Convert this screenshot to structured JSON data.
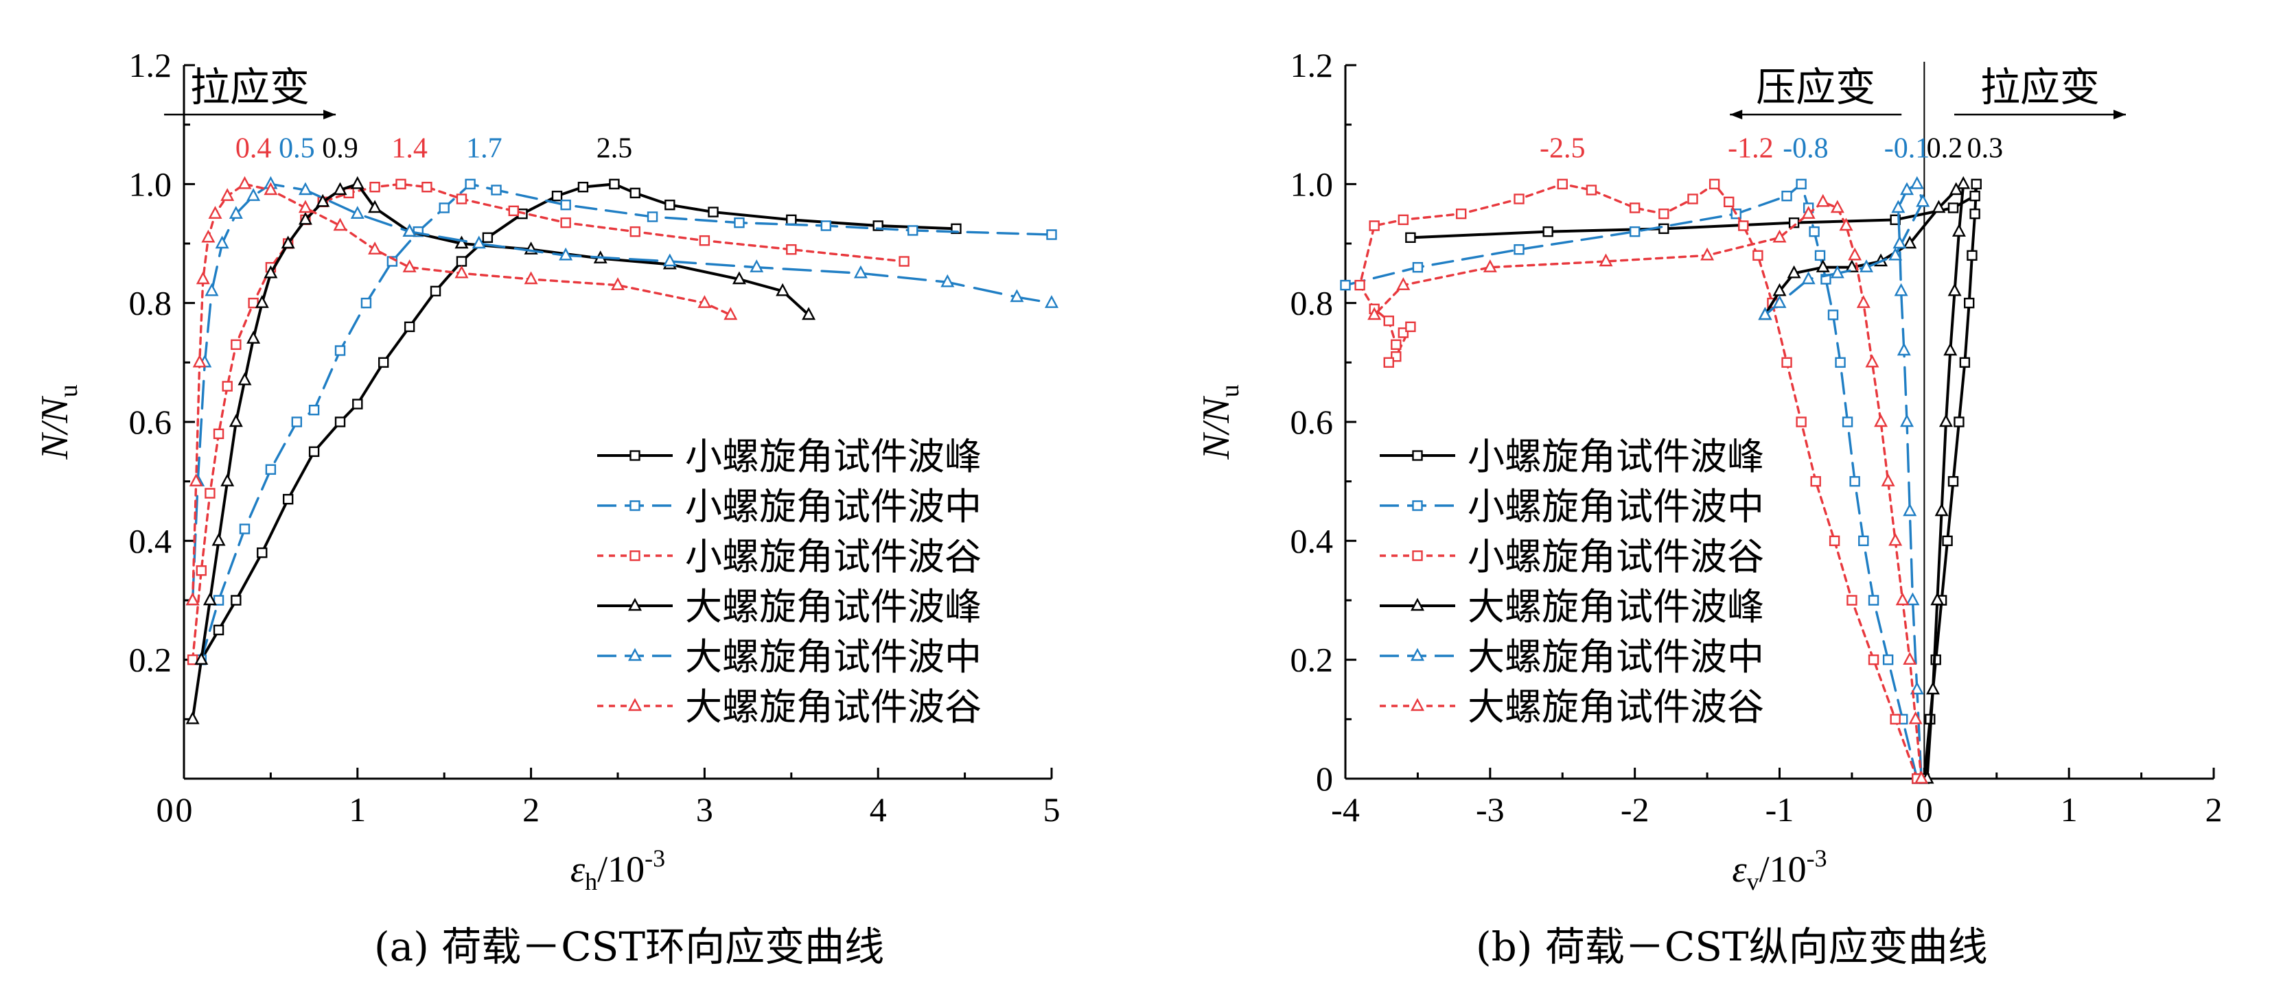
{
  "legend_entries": [
    "小螺旋角试件波峰",
    "小螺旋角试件波中",
    "小螺旋角试件波谷",
    "大螺旋角试件波峰",
    "大螺旋角试件波中",
    "大螺旋角试件波谷"
  ],
  "colors": {
    "black": "#000000",
    "blue": "#1f7ec4",
    "red": "#e8383d"
  },
  "chart_data": [
    {
      "type": "line",
      "caption": "(a) 荷载－CST环向应变曲线",
      "xlabel": "εh/10-3",
      "ylabel": "N/Nu",
      "xlim": [
        0,
        5
      ],
      "ylim": [
        0,
        1.2
      ],
      "xticks": [
        0,
        1,
        2,
        3,
        4,
        5
      ],
      "yticks": [
        0.2,
        0.4,
        0.6,
        0.8,
        1.0,
        1.2
      ],
      "xtick_labels": [
        "0",
        "1",
        "2",
        "3",
        "4",
        "5"
      ],
      "ytick_labels": [
        "0.2",
        "0.4",
        "0.6",
        "0.8",
        "1.0",
        "1.2"
      ],
      "legend_position": "lower-right",
      "annotations": [
        {
          "text": "拉应变",
          "kind": "arrow-right",
          "x": 0.38,
          "y": 1.14
        },
        {
          "text": "0.4",
          "x": 0.4,
          "y": 1.045,
          "color": "red"
        },
        {
          "text": "0.5",
          "x": 0.65,
          "y": 1.045,
          "color": "blue"
        },
        {
          "text": "0.9",
          "x": 0.9,
          "y": 1.045,
          "color": "black"
        },
        {
          "text": "1.4",
          "x": 1.3,
          "y": 1.045,
          "color": "red"
        },
        {
          "text": "1.7",
          "x": 1.73,
          "y": 1.045,
          "color": "blue"
        },
        {
          "text": "2.5",
          "x": 2.48,
          "y": 1.045,
          "color": "black"
        }
      ],
      "series": [
        {
          "name": "小螺旋角试件波峰",
          "color": "black",
          "dash": "solid",
          "marker": "square",
          "x": [
            0.1,
            0.2,
            0.3,
            0.45,
            0.6,
            0.75,
            0.9,
            1.0,
            1.15,
            1.3,
            1.45,
            1.6,
            1.75,
            1.95,
            2.15,
            2.3,
            2.48,
            2.6,
            2.8,
            3.05,
            3.5,
            4.0,
            4.45
          ],
          "y": [
            0.2,
            0.25,
            0.3,
            0.38,
            0.47,
            0.55,
            0.6,
            0.63,
            0.7,
            0.76,
            0.82,
            0.87,
            0.91,
            0.95,
            0.98,
            0.995,
            1.0,
            0.985,
            0.965,
            0.953,
            0.94,
            0.93,
            0.925
          ]
        },
        {
          "name": "小螺旋角试件波中",
          "color": "blue",
          "dash": "dash",
          "marker": "square",
          "x": [
            0.1,
            0.2,
            0.35,
            0.5,
            0.65,
            0.75,
            0.9,
            1.05,
            1.2,
            1.35,
            1.5,
            1.65,
            1.8,
            2.2,
            2.7,
            3.2,
            3.7,
            4.2,
            5.0
          ],
          "y": [
            0.2,
            0.3,
            0.42,
            0.52,
            0.6,
            0.62,
            0.72,
            0.8,
            0.87,
            0.92,
            0.96,
            1.0,
            0.99,
            0.965,
            0.945,
            0.935,
            0.93,
            0.922,
            0.915
          ]
        },
        {
          "name": "小螺旋角试件波谷",
          "color": "red",
          "dash": "dot",
          "marker": "square",
          "x": [
            0.05,
            0.1,
            0.15,
            0.2,
            0.25,
            0.3,
            0.4,
            0.5,
            0.6,
            0.7,
            0.8,
            0.95,
            1.1,
            1.25,
            1.4,
            1.6,
            1.9,
            2.2,
            2.6,
            3.0,
            3.5,
            4.15
          ],
          "y": [
            0.2,
            0.35,
            0.48,
            0.58,
            0.66,
            0.73,
            0.8,
            0.86,
            0.9,
            0.94,
            0.97,
            0.985,
            0.995,
            1.0,
            0.995,
            0.975,
            0.955,
            0.935,
            0.92,
            0.905,
            0.89,
            0.87
          ]
        },
        {
          "name": "大螺旋角试件波峰",
          "color": "black",
          "dash": "solid",
          "marker": "triangle",
          "x": [
            0.05,
            0.1,
            0.15,
            0.2,
            0.25,
            0.3,
            0.35,
            0.4,
            0.45,
            0.5,
            0.6,
            0.7,
            0.8,
            0.9,
            1.0,
            1.1,
            1.3,
            1.6,
            2.0,
            2.4,
            2.8,
            3.2,
            3.45,
            3.6
          ],
          "y": [
            0.1,
            0.2,
            0.3,
            0.4,
            0.5,
            0.6,
            0.67,
            0.74,
            0.8,
            0.85,
            0.9,
            0.94,
            0.97,
            0.99,
            1.0,
            0.96,
            0.92,
            0.9,
            0.89,
            0.875,
            0.865,
            0.84,
            0.82,
            0.78
          ]
        },
        {
          "name": "大螺旋角试件波中",
          "color": "blue",
          "dash": "longdash",
          "marker": "triangle",
          "x": [
            0.05,
            0.08,
            0.12,
            0.16,
            0.22,
            0.3,
            0.4,
            0.5,
            0.7,
            1.0,
            1.3,
            1.7,
            2.2,
            2.8,
            3.3,
            3.9,
            4.4,
            4.8,
            5.0
          ],
          "y": [
            0.3,
            0.5,
            0.7,
            0.82,
            0.9,
            0.95,
            0.98,
            1.0,
            0.99,
            0.95,
            0.92,
            0.9,
            0.88,
            0.87,
            0.86,
            0.85,
            0.835,
            0.81,
            0.8
          ]
        },
        {
          "name": "大螺旋角试件波谷",
          "color": "red",
          "dash": "dot",
          "marker": "triangle",
          "x": [
            0.05,
            0.07,
            0.09,
            0.11,
            0.14,
            0.18,
            0.25,
            0.35,
            0.5,
            0.7,
            0.9,
            1.1,
            1.3,
            1.6,
            2.0,
            2.5,
            3.0,
            3.15
          ],
          "y": [
            0.3,
            0.5,
            0.7,
            0.84,
            0.91,
            0.95,
            0.98,
            1.0,
            0.99,
            0.96,
            0.93,
            0.89,
            0.86,
            0.85,
            0.84,
            0.83,
            0.8,
            0.78
          ]
        }
      ]
    },
    {
      "type": "line",
      "caption": "(b) 荷载－CST纵向应变曲线",
      "xlabel": "εv/10-3",
      "ylabel": "N/Nu",
      "xlim": [
        -4,
        2
      ],
      "ylim": [
        0,
        1.2
      ],
      "xticks": [
        -4,
        -3,
        -2,
        -1,
        0,
        1,
        2
      ],
      "yticks": [
        0,
        0.2,
        0.4,
        0.6,
        0.8,
        1.0,
        1.2
      ],
      "xtick_labels": [
        "-4",
        "-3",
        "-2",
        "-1",
        "0",
        "1",
        "2"
      ],
      "ytick_labels": [
        "0",
        "0.2",
        "0.4",
        "0.6",
        "0.8",
        "1.0",
        "1.2"
      ],
      "legend_position": "lower-left",
      "annotations": [
        {
          "text": "压应变",
          "kind": "arrow-left",
          "x": -0.75,
          "y": 1.14
        },
        {
          "text": "拉应变",
          "kind": "arrow-right",
          "x": 0.8,
          "y": 1.14
        },
        {
          "text": "-2.5",
          "x": -2.5,
          "y": 1.045,
          "color": "red"
        },
        {
          "text": "-1.2",
          "x": -1.2,
          "y": 1.045,
          "color": "red"
        },
        {
          "text": "-0.8",
          "x": -0.82,
          "y": 1.045,
          "color": "blue"
        },
        {
          "text": "-0.1",
          "x": -0.12,
          "y": 1.045,
          "color": "blue"
        },
        {
          "text": "0.2",
          "x": 0.14,
          "y": 1.045,
          "color": "black"
        },
        {
          "text": "0.3",
          "x": 0.42,
          "y": 1.045,
          "color": "black"
        }
      ],
      "series": [
        {
          "name": "小螺旋角试件波峰",
          "color": "black",
          "dash": "solid",
          "marker": "square",
          "x": [
            0.0,
            0.04,
            0.08,
            0.12,
            0.16,
            0.2,
            0.24,
            0.28,
            0.31,
            0.33,
            0.35,
            0.36,
            0.35,
            0.2,
            -0.2,
            -0.9,
            -1.8,
            -2.6,
            -3.55
          ],
          "y": [
            0.0,
            0.1,
            0.2,
            0.3,
            0.4,
            0.5,
            0.6,
            0.7,
            0.8,
            0.88,
            0.95,
            1.0,
            0.98,
            0.96,
            0.94,
            0.935,
            0.925,
            0.92,
            0.91
          ]
        },
        {
          "name": "小螺旋角试件波中",
          "color": "blue",
          "dash": "dash",
          "marker": "square",
          "x": [
            -0.05,
            -0.15,
            -0.25,
            -0.35,
            -0.42,
            -0.48,
            -0.53,
            -0.58,
            -0.63,
            -0.68,
            -0.72,
            -0.76,
            -0.8,
            -0.85,
            -0.95,
            -1.3,
            -2.0,
            -2.8,
            -3.5,
            -4.0
          ],
          "y": [
            0.0,
            0.1,
            0.2,
            0.3,
            0.4,
            0.5,
            0.6,
            0.7,
            0.78,
            0.84,
            0.88,
            0.92,
            0.96,
            1.0,
            0.98,
            0.95,
            0.92,
            0.89,
            0.86,
            0.83
          ]
        },
        {
          "name": "小螺旋角试件波谷",
          "color": "red",
          "dash": "dot",
          "marker": "square",
          "x": [
            -0.05,
            -0.2,
            -0.35,
            -0.5,
            -0.62,
            -0.75,
            -0.85,
            -0.95,
            -1.05,
            -1.15,
            -1.25,
            -1.35,
            -1.45,
            -1.6,
            -1.8,
            -2.0,
            -2.3,
            -2.5,
            -2.8,
            -3.2,
            -3.6,
            -3.8,
            -3.9,
            -3.8,
            -3.7,
            -3.65,
            -3.6,
            -3.55,
            -3.65,
            -3.7
          ],
          "y": [
            0.0,
            0.1,
            0.2,
            0.3,
            0.4,
            0.5,
            0.6,
            0.7,
            0.8,
            0.88,
            0.93,
            0.97,
            1.0,
            0.975,
            0.95,
            0.96,
            0.99,
            1.0,
            0.975,
            0.95,
            0.94,
            0.93,
            0.83,
            0.79,
            0.77,
            0.73,
            0.75,
            0.76,
            0.71,
            0.7
          ]
        },
        {
          "name": "大螺旋角试件波峰",
          "color": "black",
          "dash": "solid",
          "marker": "triangle",
          "x": [
            0.02,
            0.06,
            0.09,
            0.12,
            0.15,
            0.18,
            0.21,
            0.24,
            0.27,
            0.22,
            0.1,
            -0.1,
            -0.3,
            -0.5,
            -0.7,
            -0.9,
            -1.0,
            -1.1
          ],
          "y": [
            0.0,
            0.15,
            0.3,
            0.45,
            0.6,
            0.72,
            0.82,
            0.92,
            1.0,
            0.99,
            0.96,
            0.9,
            0.87,
            0.86,
            0.86,
            0.85,
            0.82,
            0.78
          ]
        },
        {
          "name": "大螺旋角试件波中",
          "color": "blue",
          "dash": "longdash",
          "marker": "triangle",
          "x": [
            -0.02,
            -0.05,
            -0.08,
            -0.1,
            -0.12,
            -0.14,
            -0.16,
            -0.17,
            -0.18,
            -0.12,
            -0.05,
            -0.01,
            -0.2,
            -0.4,
            -0.6,
            -0.8,
            -1.0,
            -1.1
          ],
          "y": [
            0.0,
            0.15,
            0.3,
            0.45,
            0.6,
            0.72,
            0.82,
            0.9,
            0.96,
            0.99,
            1.0,
            0.97,
            0.88,
            0.86,
            0.85,
            0.84,
            0.8,
            0.78
          ]
        },
        {
          "name": "大螺旋角试件波谷",
          "color": "red",
          "dash": "dot",
          "marker": "triangle",
          "x": [
            -0.02,
            -0.06,
            -0.1,
            -0.15,
            -0.2,
            -0.25,
            -0.3,
            -0.36,
            -0.42,
            -0.48,
            -0.54,
            -0.6,
            -0.7,
            -0.8,
            -1.0,
            -1.5,
            -2.2,
            -3.0,
            -3.6,
            -3.8
          ],
          "y": [
            0.0,
            0.1,
            0.2,
            0.3,
            0.4,
            0.5,
            0.6,
            0.7,
            0.8,
            0.88,
            0.93,
            0.96,
            0.97,
            0.95,
            0.91,
            0.88,
            0.87,
            0.86,
            0.83,
            0.78
          ]
        }
      ]
    }
  ]
}
